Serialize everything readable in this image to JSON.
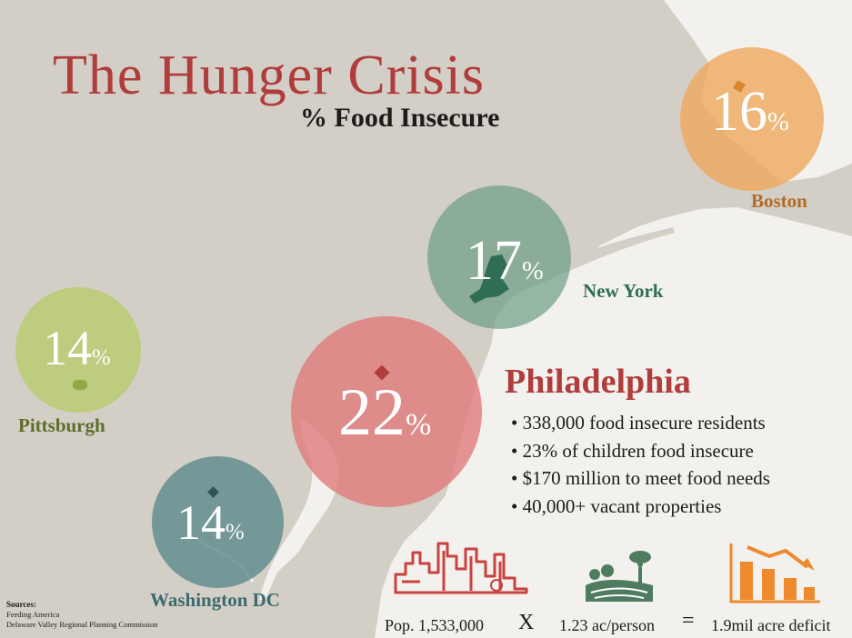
{
  "title": "The Hunger Crisis",
  "subtitle": "% Food Insecure",
  "colors": {
    "title": "#b03c3c",
    "boston": "#f0a65a",
    "new_york": "#6f9f86",
    "philadelphia": "#e07878",
    "pittsburgh": "#b8cb6e",
    "washington": "#5f8a8c",
    "land": "#d3cfc6",
    "water": "#f2f1ee"
  },
  "cities": [
    {
      "name": "Boston",
      "pct": "16",
      "symbol": "%"
    },
    {
      "name": "New York",
      "pct": "17",
      "symbol": "%"
    },
    {
      "name": "Pittsburgh",
      "pct": "14",
      "symbol": "%"
    },
    {
      "name": "Philadelphia",
      "pct": "22",
      "symbol": "%"
    },
    {
      "name": "Washington DC",
      "pct": "14",
      "symbol": "%"
    }
  ],
  "philadelphia": {
    "heading": "Philadelphia",
    "bullets": [
      "338,000 food insecure residents",
      "23% of children food insecure",
      "$170 million to meet food needs",
      "40,000+ vacant properties"
    ]
  },
  "equation": {
    "population": "Pop. 1,533,000",
    "times": "X",
    "per_person": "1.23 ac/person",
    "equals": "=",
    "deficit": "1.9mil acre deficit",
    "icons": [
      "city-skyline-icon",
      "farm-field-icon",
      "declining-bar-chart-icon"
    ]
  },
  "sources": {
    "heading": "Sources:",
    "items": [
      "Feeding America",
      "Delaware Valley Regional Planning Commission"
    ]
  }
}
